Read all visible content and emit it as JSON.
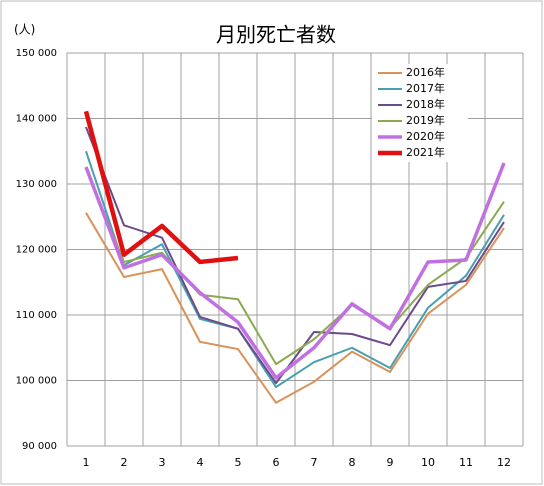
{
  "chart_data": {
    "type": "line",
    "title": "月別死亡者数",
    "y_unit": "(人)",
    "categories": [
      "1",
      "2",
      "3",
      "4",
      "5",
      "6",
      "7",
      "8",
      "9",
      "10",
      "11",
      "12"
    ],
    "series": [
      {
        "name": "2016年",
        "color": "#d8925a",
        "width": 2,
        "values": [
          125600,
          115800,
          117000,
          105900,
          104800,
          96600,
          99800,
          104400,
          101300,
          110200,
          114600,
          123300
        ]
      },
      {
        "name": "2017年",
        "color": "#4a9fae",
        "width": 2,
        "values": [
          135000,
          117600,
          120800,
          109400,
          107900,
          99000,
          102800,
          105000,
          101900,
          111100,
          116000,
          125300
        ]
      },
      {
        "name": "2018年",
        "color": "#6b4c8a",
        "width": 2,
        "values": [
          138700,
          123700,
          121800,
          109700,
          107900,
          99600,
          107400,
          107100,
          105400,
          114300,
          115200,
          124200
        ]
      },
      {
        "name": "2019年",
        "color": "#8aaa50",
        "width": 2,
        "values": [
          132400,
          118100,
          119500,
          113100,
          112400,
          102500,
          106300,
          111500,
          108000,
          114600,
          118700,
          127300
        ]
      },
      {
        "name": "2020年",
        "color": "#c070e0",
        "width": 3.5,
        "values": [
          132600,
          117200,
          119200,
          113400,
          108900,
          100400,
          105000,
          111700,
          107900,
          118100,
          118400,
          133200
        ]
      },
      {
        "name": "2021年",
        "color": "#e01010",
        "width": 4.5,
        "values": [
          141100,
          119200,
          123600,
          118100,
          118700,
          null,
          null,
          null,
          null,
          null,
          null,
          null
        ]
      }
    ],
    "ylim": [
      90000,
      150000
    ],
    "yticks": [
      {
        "value": 90000,
        "label": "90 000"
      },
      {
        "value": 100000,
        "label": "100 000"
      },
      {
        "value": 110000,
        "label": "110 000"
      },
      {
        "value": 120000,
        "label": "120 000"
      },
      {
        "value": 130000,
        "label": "130 000"
      },
      {
        "value": 140000,
        "label": "140 000"
      },
      {
        "value": 150000,
        "label": "150 000"
      }
    ],
    "grid": true,
    "legend": "upper right"
  }
}
